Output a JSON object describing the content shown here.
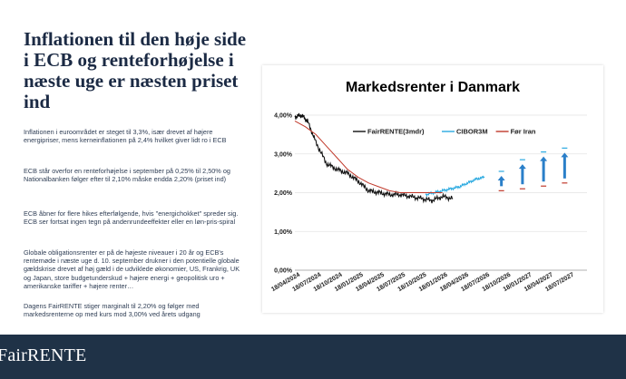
{
  "headline": "Inflationen til den høje side i ECB og renteforhøjelse i næste uge er næsten priset ind",
  "paragraphs": [
    "Inflationen i euroområdet er steget til 3,3%, især drevet af højere energipriser, mens kerneinflationen på 2,4% hvilket giver lidt ro i ECB",
    "ECB står overfor en renteforhøjelse i september på 0,25% til 2,50% og Nationalbanken følger efter til 2,10% måske endda 2,20% (priset ind)",
    "ECB åbner for flere hikes efterfølgende, hvis \"energichokket\" spreder sig. ECB ser fortsat ingen tegn på andenrundeeffekter eller en løn-pris-spiral",
    "Globale obligationsrenter er på de højeste niveauer i 20 år og ECB's rentemøde i næste uge d. 10. september drukner i den potentielle globale gældskrise drevet af høj gæld i de udviklede økonomier, US, Frankrig, UK og Japan, store budgetunderskud + højere energi + geopolitisk uro + amerikanske tariffer + højere renter…",
    "Dagens FairRENTE stiger marginalt til 2,20% og følger med markedsrenterne op med kurs mod 3,00% ved årets udgang"
  ],
  "footer": {
    "brand": "FairRENTE"
  },
  "colors": {
    "footer": "#1f3247",
    "fair": "#111111",
    "cibor": "#29a9e0",
    "foer": "#c0392b",
    "arrow": "#2a7fc9"
  },
  "chart_data": {
    "type": "line",
    "title": "Markedsrenter i Danmark",
    "y_ticks": [
      "4,00%",
      "3,00%",
      "2,00%",
      "1,00%",
      "0,00%"
    ],
    "ylim": [
      0,
      4
    ],
    "x_ticks": [
      "18/04/2024",
      "18/07/2024",
      "18/10/2024",
      "18/01/2025",
      "18/04/2025",
      "18/07/2025",
      "18/10/2025",
      "18/01/2026",
      "18/04/2026",
      "18/07/2026",
      "18/10/2026",
      "18/01/2027",
      "18/04/2027",
      "18/07/2027"
    ],
    "legend": "top",
    "series": [
      {
        "name": "FairRENTE(3mdr)",
        "color": "#111111",
        "x": [
          0,
          0.3,
          0.6,
          1.0,
          1.5,
          2.0,
          2.5,
          3.0,
          3.5,
          4.0,
          4.5,
          5.0,
          5.5,
          6.0,
          6.5,
          7.0,
          7.5
        ],
        "values": [
          3.95,
          4.0,
          3.85,
          3.3,
          2.75,
          2.6,
          2.5,
          2.3,
          2.05,
          2.0,
          1.95,
          1.95,
          1.9,
          1.85,
          1.8,
          1.9,
          1.85
        ]
      },
      {
        "name": "CIBOR3M",
        "color": "#29a9e0",
        "x": [
          6.2,
          6.6,
          7.0,
          7.4,
          7.8,
          8.2,
          8.6,
          9.0
        ],
        "values": [
          1.95,
          2.0,
          2.05,
          2.1,
          2.15,
          2.25,
          2.35,
          2.4
        ]
      },
      {
        "name": "Før Iran",
        "color": "#c0392b",
        "x": [
          0,
          0.5,
          1.0,
          1.5,
          2.0,
          2.5,
          3.0,
          3.5,
          4.0,
          4.5,
          5.0,
          5.5,
          6.0,
          6.5,
          7.0
        ],
        "values": [
          3.85,
          3.7,
          3.5,
          3.2,
          2.9,
          2.6,
          2.4,
          2.25,
          2.15,
          2.05,
          2.0,
          2.0,
          2.0,
          2.0,
          2.0
        ]
      }
    ],
    "forecast": [
      {
        "x": 9.8,
        "before": 2.05,
        "after": 2.55
      },
      {
        "x": 10.8,
        "before": 2.1,
        "after": 2.85
      },
      {
        "x": 11.8,
        "before": 2.17,
        "after": 3.05
      },
      {
        "x": 12.8,
        "before": 2.25,
        "after": 3.15
      }
    ]
  }
}
